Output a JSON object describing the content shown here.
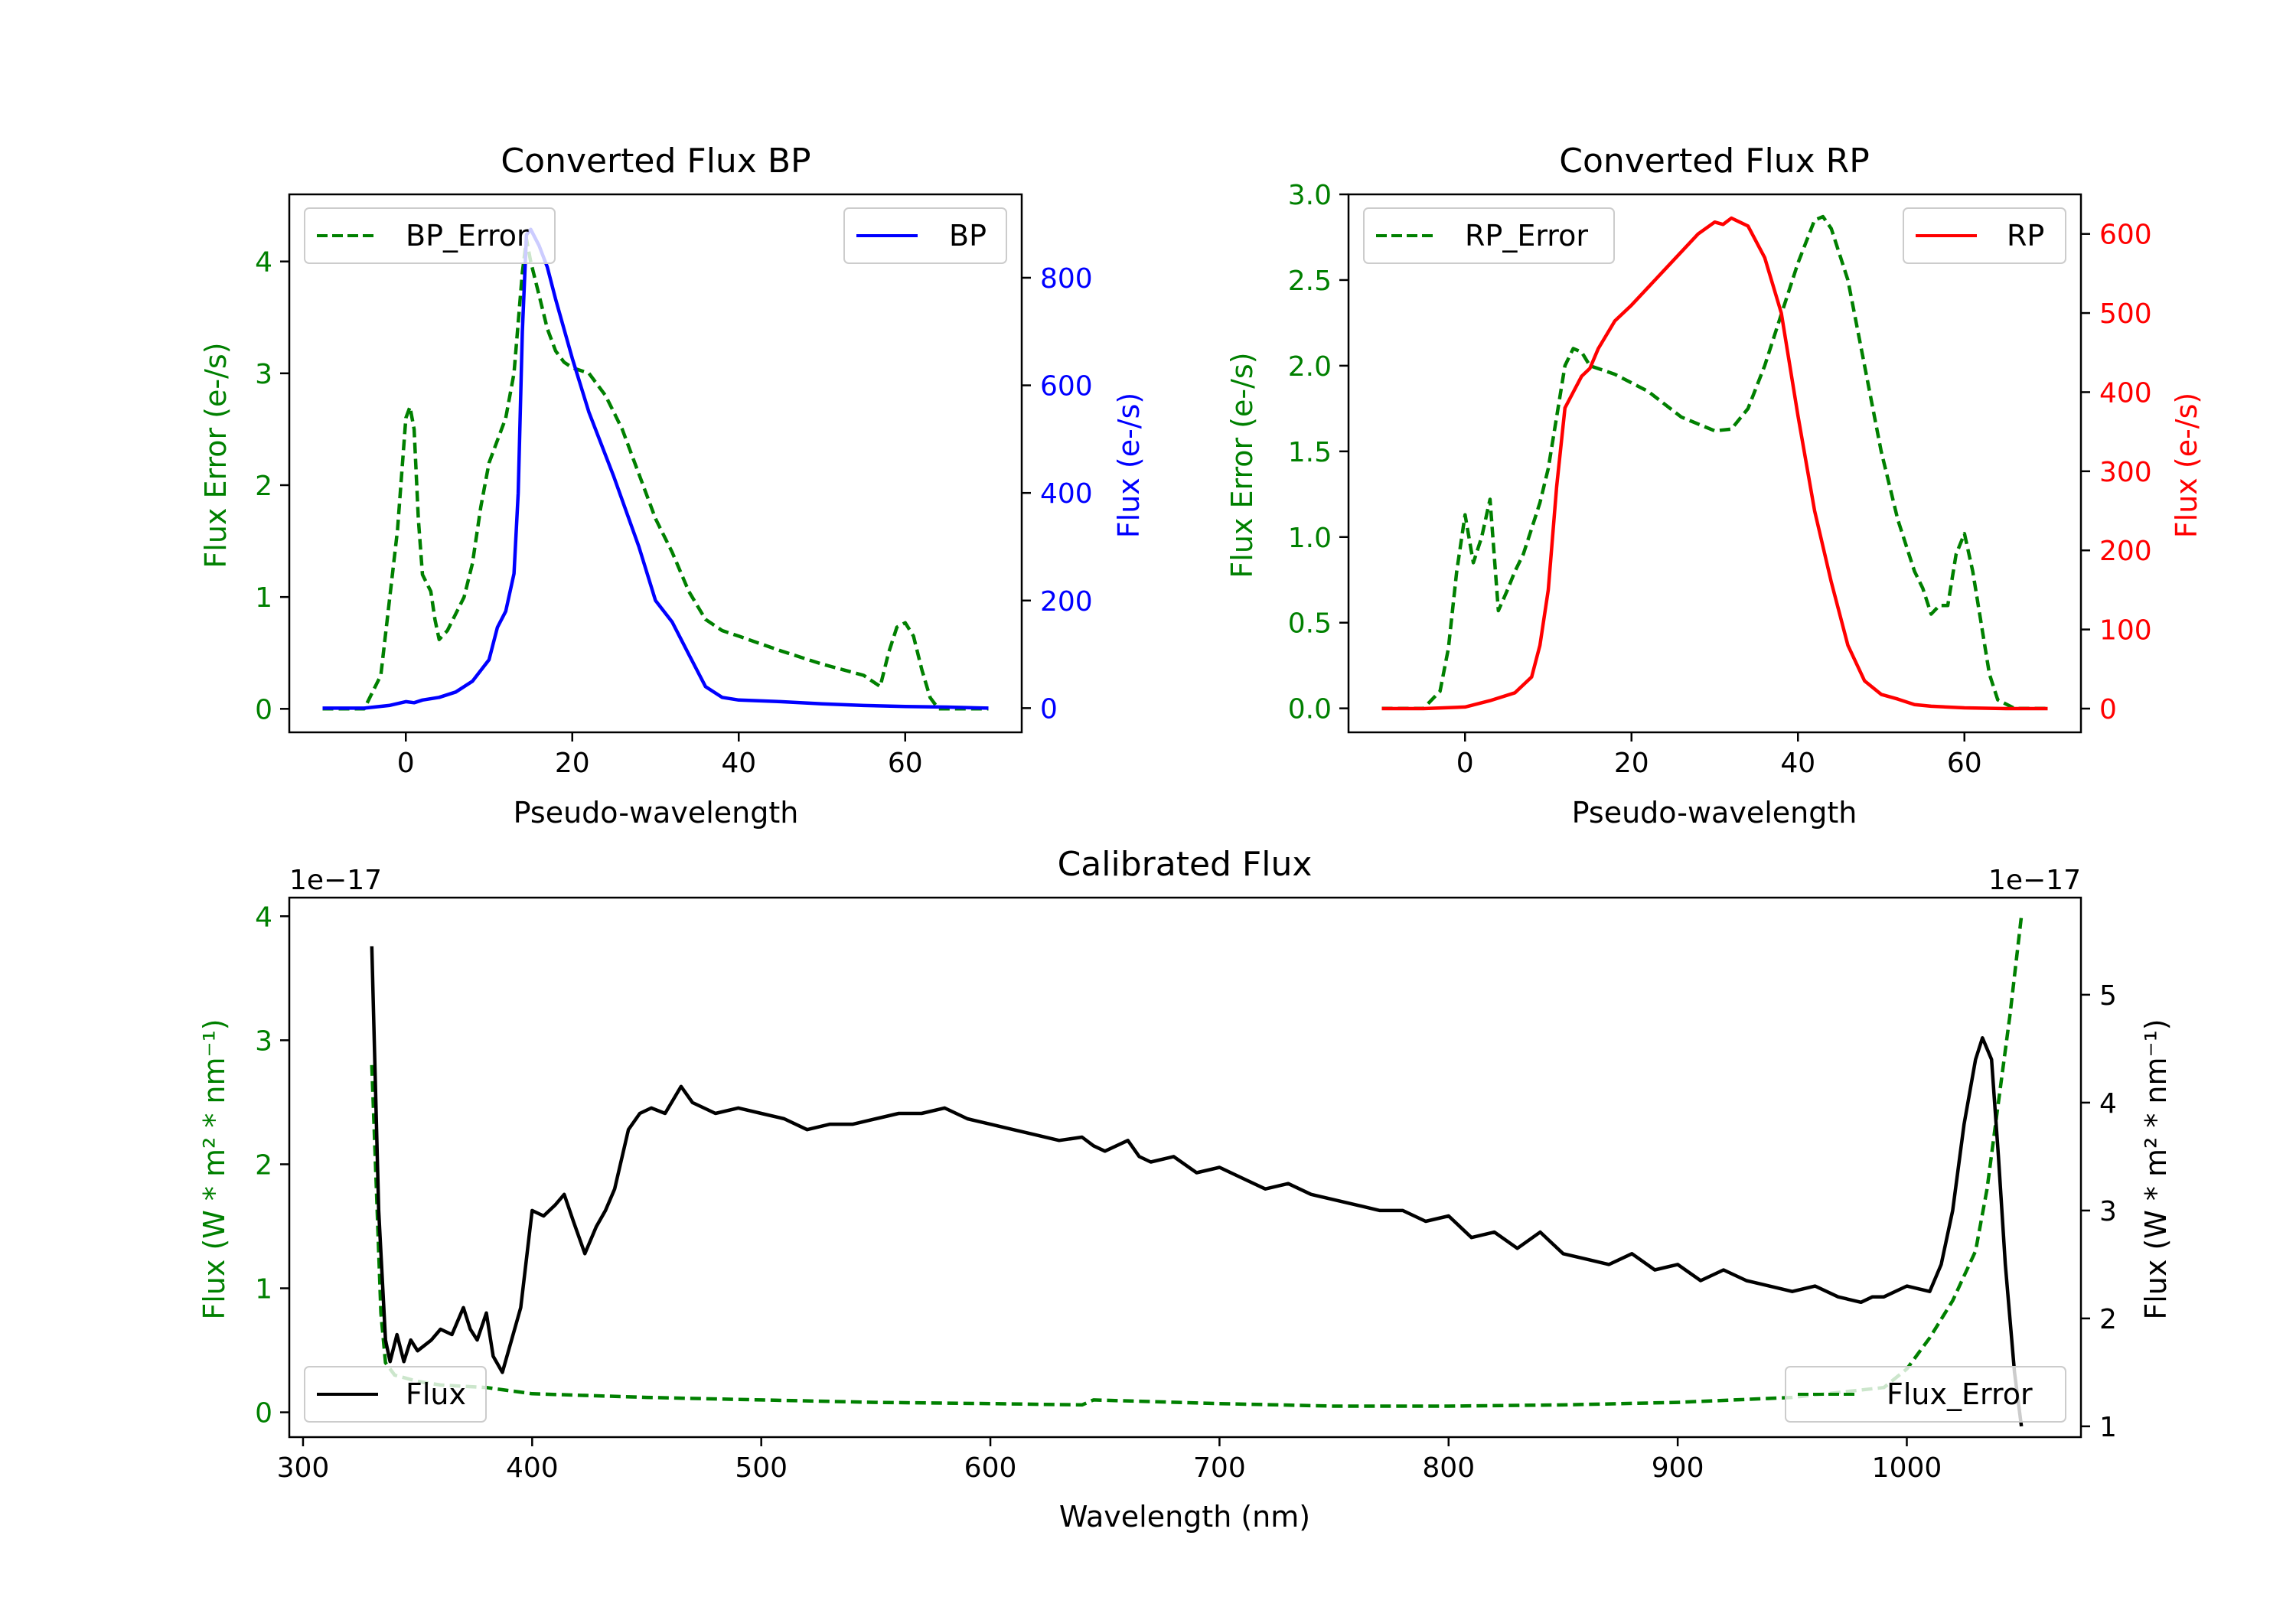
{
  "chart_data": [
    {
      "id": "bp",
      "type": "line",
      "title": "Converted Flux BP",
      "xlabel": "Pseudo-wavelength",
      "ylabel_left": "Flux Error (e-/s)",
      "ylabel_right": "Flux (e-/s)",
      "xlim": [
        -14,
        74
      ],
      "ylim_left": [
        -0.21,
        4.6
      ],
      "ylim_right": [
        -45,
        955
      ],
      "xticks": [
        0,
        20,
        40,
        60
      ],
      "yticks_left": [
        0,
        1,
        2,
        3,
        4
      ],
      "yticks_right": [
        0,
        200,
        400,
        600,
        800
      ],
      "left_axis_color": "#008000",
      "right_axis_color": "#0000ff",
      "legend_left": {
        "label": "BP_Error",
        "placement": "upper left"
      },
      "legend_right": {
        "label": "BP",
        "placement": "upper right"
      },
      "series": [
        {
          "name": "BP_Error",
          "axis": "left",
          "color": "#008000",
          "style": "dashed",
          "x": [
            -10,
            -5,
            -3,
            -1,
            0,
            0.5,
            1,
            1.5,
            2,
            3,
            3.5,
            4,
            5,
            6,
            7,
            8,
            9,
            10,
            11,
            12,
            13,
            14,
            14.5,
            15,
            16,
            17,
            18,
            19,
            20,
            22,
            24,
            26,
            28,
            30,
            32,
            34,
            36,
            38,
            40,
            45,
            50,
            55,
            57,
            58,
            59,
            60,
            61,
            62,
            63,
            64,
            66,
            70
          ],
          "values": [
            0,
            0,
            0.3,
            1.6,
            2.6,
            2.7,
            2.5,
            1.7,
            1.2,
            1.05,
            0.8,
            0.62,
            0.7,
            0.85,
            1.0,
            1.3,
            1.8,
            2.2,
            2.4,
            2.6,
            3.0,
            3.9,
            4.2,
            4.0,
            3.7,
            3.4,
            3.2,
            3.1,
            3.05,
            3.0,
            2.8,
            2.5,
            2.1,
            1.7,
            1.4,
            1.05,
            0.8,
            0.7,
            0.65,
            0.52,
            0.4,
            0.3,
            0.2,
            0.5,
            0.73,
            0.77,
            0.65,
            0.35,
            0.1,
            0,
            0,
            0
          ]
        },
        {
          "name": "BP",
          "axis": "right",
          "color": "#0000ff",
          "style": "solid",
          "x": [
            -10,
            -5,
            -2,
            0,
            1,
            2,
            4,
            6,
            8,
            10,
            11,
            12,
            13,
            13.5,
            14,
            14.5,
            15,
            15.5,
            16,
            17,
            18,
            20,
            22,
            25,
            28,
            30,
            32,
            34,
            36,
            38,
            40,
            45,
            50,
            55,
            60,
            65,
            70
          ],
          "values": [
            0,
            0,
            5,
            12,
            10,
            15,
            20,
            30,
            50,
            90,
            150,
            180,
            250,
            400,
            700,
            880,
            890,
            875,
            860,
            820,
            760,
            650,
            550,
            430,
            300,
            200,
            160,
            100,
            40,
            20,
            15,
            12,
            8,
            5,
            3,
            2,
            0
          ]
        }
      ]
    },
    {
      "id": "rp",
      "type": "line",
      "title": "Converted Flux RP",
      "xlabel": "Pseudo-wavelength",
      "ylabel_left": "Flux Error (e-/s)",
      "ylabel_right": "Flux (e-/s)",
      "xlim": [
        -14,
        74
      ],
      "ylim_left": [
        -0.14,
        3.0
      ],
      "ylim_right": [
        -30,
        650
      ],
      "xticks": [
        0,
        20,
        40,
        60
      ],
      "yticks_left": [
        0.0,
        0.5,
        1.0,
        1.5,
        2.0,
        2.5,
        3.0
      ],
      "yticks_right": [
        0,
        100,
        200,
        300,
        400,
        500,
        600
      ],
      "left_axis_color": "#008000",
      "right_axis_color": "#ff0000",
      "legend_left": {
        "label": "RP_Error",
        "placement": "upper left"
      },
      "legend_right": {
        "label": "RP",
        "placement": "upper right"
      },
      "series": [
        {
          "name": "RP_Error",
          "axis": "left",
          "color": "#008000",
          "style": "dashed",
          "x": [
            -10,
            -5,
            -3,
            -2,
            -1,
            0,
            1,
            2,
            3,
            4,
            5,
            6,
            7,
            8,
            9,
            10,
            11,
            12,
            13,
            14,
            15,
            18,
            22,
            26,
            30,
            32,
            34,
            36,
            38,
            40,
            42,
            43,
            44,
            46,
            48,
            50,
            52,
            54,
            55,
            56,
            57,
            58,
            59,
            60,
            61,
            62,
            63,
            64,
            66,
            70
          ],
          "values": [
            0,
            0,
            0.1,
            0.35,
            0.8,
            1.13,
            0.85,
            1.0,
            1.22,
            0.57,
            0.68,
            0.8,
            0.9,
            1.05,
            1.2,
            1.4,
            1.7,
            2.0,
            2.1,
            2.08,
            2.0,
            1.95,
            1.85,
            1.7,
            1.62,
            1.63,
            1.75,
            2.0,
            2.3,
            2.6,
            2.85,
            2.87,
            2.8,
            2.5,
            2.0,
            1.5,
            1.1,
            0.8,
            0.7,
            0.55,
            0.6,
            0.6,
            0.9,
            1.02,
            0.8,
            0.5,
            0.2,
            0.05,
            0,
            0
          ]
        },
        {
          "name": "RP",
          "axis": "right",
          "color": "#ff0000",
          "style": "solid",
          "x": [
            -10,
            -5,
            0,
            3,
            6,
            8,
            9,
            10,
            11,
            12,
            13,
            14,
            15,
            16,
            18,
            20,
            24,
            28,
            30,
            31,
            32,
            33,
            34,
            36,
            38,
            40,
            42,
            44,
            46,
            48,
            50,
            52,
            54,
            56,
            60,
            65,
            70
          ],
          "values": [
            0,
            0,
            2,
            10,
            20,
            40,
            80,
            150,
            280,
            380,
            400,
            420,
            430,
            455,
            490,
            510,
            555,
            600,
            615,
            612,
            620,
            615,
            610,
            570,
            500,
            370,
            250,
            160,
            80,
            35,
            18,
            12,
            5,
            3,
            1,
            0,
            0
          ]
        }
      ]
    },
    {
      "id": "calibrated",
      "type": "line",
      "title": "Calibrated Flux",
      "xlabel": "Wavelength (nm)",
      "ylabel_left": "Flux (W * m² * nm⁻¹)",
      "ylabel_right": "Flux (W * m² * nm⁻¹)",
      "left_offset_text": "1e−17",
      "right_offset_text": "1e−17",
      "xlim": [
        294,
        1076
      ],
      "ylim_left": [
        -0.2,
        4.15
      ],
      "ylim_right": [
        0.9,
        5.9
      ],
      "xticks": [
        300,
        400,
        500,
        600,
        700,
        800,
        900,
        1000
      ],
      "yticks_left": [
        0,
        1,
        2,
        3,
        4
      ],
      "yticks_right": [
        1,
        2,
        3,
        4,
        5
      ],
      "left_axis_color": "#008000",
      "right_axis_color": "#000000",
      "legend_left": {
        "label": "Flux",
        "placement": "lower left"
      },
      "legend_right": {
        "label": "Flux_Error",
        "placement": "lower right"
      },
      "series": [
        {
          "name": "Flux_Error",
          "axis": "left",
          "color": "#008000",
          "style": "dashed",
          "x": [
            330,
            332,
            334,
            336,
            340,
            350,
            360,
            380,
            400,
            450,
            500,
            550,
            600,
            640,
            645,
            700,
            750,
            800,
            850,
            900,
            950,
            990,
            1000,
            1010,
            1020,
            1030,
            1035,
            1040,
            1045,
            1050
          ],
          "values": [
            2.8,
            1.8,
            0.8,
            0.4,
            0.3,
            0.25,
            0.22,
            0.2,
            0.15,
            0.12,
            0.1,
            0.08,
            0.07,
            0.06,
            0.1,
            0.07,
            0.05,
            0.05,
            0.06,
            0.08,
            0.12,
            0.2,
            0.35,
            0.6,
            0.9,
            1.3,
            1.8,
            2.5,
            3.2,
            4.0
          ]
        },
        {
          "name": "Flux",
          "axis": "right",
          "color": "#000000",
          "style": "solid",
          "x": [
            330,
            333,
            336,
            338,
            341,
            344,
            347,
            350,
            353,
            356,
            360,
            365,
            370,
            373,
            376,
            380,
            383,
            387,
            391,
            395,
            400,
            405,
            410,
            414,
            418,
            423,
            428,
            432,
            436,
            442,
            447,
            452,
            458,
            465,
            470,
            475,
            480,
            490,
            500,
            510,
            520,
            530,
            540,
            550,
            560,
            570,
            580,
            590,
            600,
            610,
            620,
            630,
            640,
            645,
            650,
            660,
            665,
            670,
            680,
            690,
            700,
            710,
            720,
            730,
            740,
            750,
            760,
            770,
            780,
            790,
            800,
            810,
            820,
            830,
            840,
            850,
            860,
            870,
            880,
            890,
            900,
            910,
            920,
            930,
            940,
            950,
            960,
            970,
            980,
            985,
            990,
            1000,
            1010,
            1015,
            1020,
            1025,
            1030,
            1033,
            1037,
            1040,
            1043,
            1047,
            1050
          ],
          "values": [
            5.45,
            3.0,
            1.8,
            1.6,
            1.85,
            1.6,
            1.8,
            1.7,
            1.75,
            1.8,
            1.9,
            1.85,
            2.1,
            1.9,
            1.8,
            2.05,
            1.65,
            1.5,
            1.8,
            2.1,
            3.0,
            2.95,
            3.05,
            3.15,
            2.9,
            2.6,
            2.85,
            3.0,
            3.2,
            3.75,
            3.9,
            3.95,
            3.9,
            4.15,
            4.0,
            3.95,
            3.9,
            3.95,
            3.9,
            3.85,
            3.75,
            3.8,
            3.8,
            3.85,
            3.9,
            3.9,
            3.95,
            3.85,
            3.8,
            3.75,
            3.7,
            3.65,
            3.68,
            3.6,
            3.55,
            3.65,
            3.5,
            3.45,
            3.5,
            3.35,
            3.4,
            3.3,
            3.2,
            3.25,
            3.15,
            3.1,
            3.05,
            3.0,
            3.0,
            2.9,
            2.95,
            2.75,
            2.8,
            2.65,
            2.8,
            2.6,
            2.55,
            2.5,
            2.6,
            2.45,
            2.5,
            2.35,
            2.45,
            2.35,
            2.3,
            2.25,
            2.3,
            2.2,
            2.15,
            2.2,
            2.2,
            2.3,
            2.25,
            2.5,
            3.0,
            3.8,
            4.4,
            4.6,
            4.4,
            3.5,
            2.5,
            1.5,
            1.0
          ]
        }
      ]
    }
  ]
}
